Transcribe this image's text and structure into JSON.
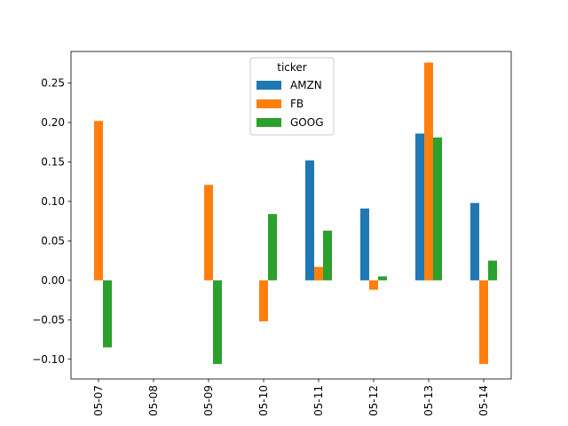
{
  "chart_data": {
    "type": "bar",
    "categories": [
      "05-07",
      "05-08",
      "05-09",
      "05-10",
      "05-11",
      "05-12",
      "05-13",
      "05-14"
    ],
    "series": [
      {
        "name": "AMZN",
        "color": "#1f77b4",
        "values": [
          null,
          null,
          null,
          null,
          0.152,
          0.091,
          0.186,
          0.098
        ]
      },
      {
        "name": "FB",
        "color": "#ff7f0e",
        "values": [
          0.202,
          null,
          0.121,
          -0.052,
          0.017,
          -0.012,
          0.276,
          -0.106
        ]
      },
      {
        "name": "GOOG",
        "color": "#2ca02c",
        "values": [
          -0.085,
          null,
          -0.106,
          0.084,
          0.063,
          0.005,
          0.181,
          0.025
        ]
      }
    ],
    "yticks": [
      -0.1,
      -0.05,
      0.0,
      0.05,
      0.1,
      0.15,
      0.2,
      0.25
    ],
    "ytick_labels": [
      "−0.10",
      "−0.05",
      "0.00",
      "0.05",
      "0.10",
      "0.15",
      "0.20",
      "0.25"
    ],
    "ylim": [
      -0.125,
      0.29
    ],
    "legend": {
      "title": "ticker",
      "position": "upper-center"
    },
    "grid": false
  }
}
